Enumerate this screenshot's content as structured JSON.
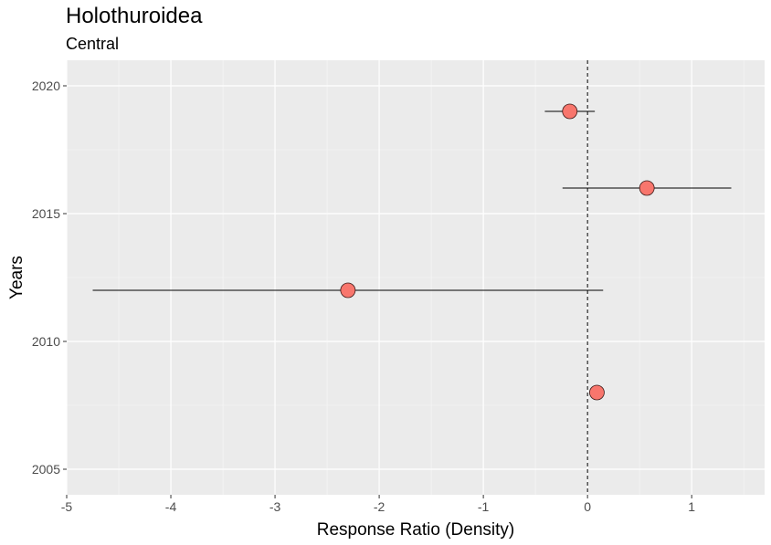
{
  "chart_data": {
    "type": "scatter",
    "title": "Holothuroidea",
    "subtitle": "Central",
    "xlabel": "Response Ratio (Density)",
    "ylabel": "Years",
    "xlim": [
      -5.0,
      1.7
    ],
    "ylim": [
      2004.0,
      2021.0
    ],
    "x_ticks": [
      -5,
      -4,
      -3,
      -2,
      -1,
      0,
      1
    ],
    "y_ticks": [
      2005,
      2010,
      2015,
      2020
    ],
    "reference_line": {
      "x": 0,
      "style": "dashed"
    },
    "grid": true,
    "point_color": "#F8766D",
    "points": [
      {
        "year": 2019,
        "rr": -0.17,
        "lower": -0.41,
        "upper": 0.07
      },
      {
        "year": 2016,
        "rr": 0.57,
        "lower": -0.24,
        "upper": 1.38
      },
      {
        "year": 2012,
        "rr": -2.3,
        "lower": -4.75,
        "upper": 0.15
      },
      {
        "year": 2008,
        "rr": 0.09,
        "lower": 0.09,
        "upper": 0.09
      }
    ]
  }
}
